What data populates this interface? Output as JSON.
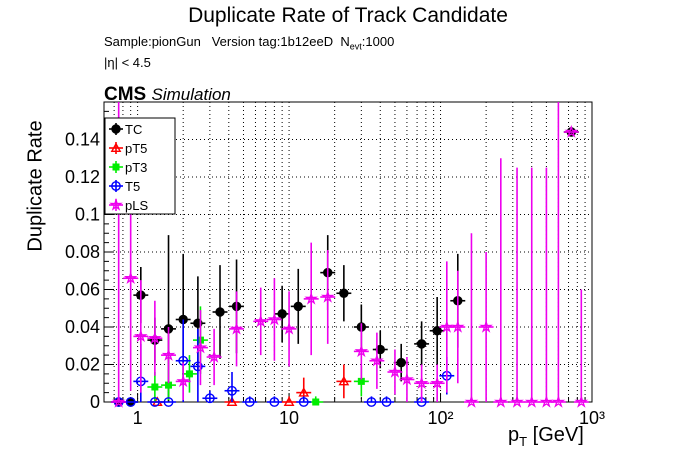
{
  "chart_data": {
    "type": "scatter",
    "title": "Duplicate Rate of Track Candidate",
    "subtitle_sample": "Sample:pionGun",
    "subtitle_version": "Version tag:1b12eeD",
    "subtitle_nevt_label": "N",
    "subtitle_nevt_sub": "evt",
    "subtitle_nevt_value": ":1000",
    "eta_cut": "|η| < 4.5",
    "cms_label": "CMS",
    "cms_sub": "Simulation",
    "ylabel": "Duplicate Rate",
    "xlabel_main": "p",
    "xlabel_sub": "T",
    "xlabel_unit": "[GeV]",
    "x_scale": "log",
    "xlim": [
      0.6,
      1000
    ],
    "ylim": [
      0,
      0.16
    ],
    "grid": true,
    "legend_position": "top-left",
    "x_tick_labels": [
      "1",
      "10",
      "10²",
      "10³"
    ],
    "y_tick_labels": [
      "0",
      "0.02",
      "0.04",
      "0.06",
      "0.08",
      "0.1",
      "0.12",
      "0.14"
    ],
    "series": [
      {
        "name": "TC",
        "color": "#000000",
        "marker": "filled-circle",
        "points": [
          {
            "x": 0.75,
            "y": 0.0,
            "err": 0.0
          },
          {
            "x": 0.9,
            "y": 0.0,
            "err": 0.0
          },
          {
            "x": 1.05,
            "y": 0.057,
            "err": 0.015
          },
          {
            "x": 1.3,
            "y": 0.033,
            "err": 0.012
          },
          {
            "x": 1.6,
            "y": 0.039,
            "err": 0.05
          },
          {
            "x": 2.0,
            "y": 0.044,
            "err": 0.035
          },
          {
            "x": 2.5,
            "y": 0.042,
            "err": 0.025
          },
          {
            "x": 3.5,
            "y": 0.048,
            "err": 0.025
          },
          {
            "x": 4.5,
            "y": 0.051,
            "err": 0.025
          },
          {
            "x": 9.0,
            "y": 0.047,
            "err": 0.015
          },
          {
            "x": 11.5,
            "y": 0.051,
            "err": 0.02
          },
          {
            "x": 18.0,
            "y": 0.069,
            "err": 0.02
          },
          {
            "x": 23.0,
            "y": 0.058,
            "err": 0.015
          },
          {
            "x": 30.0,
            "y": 0.04,
            "err": 0.012
          },
          {
            "x": 40.0,
            "y": 0.028,
            "err": 0.01
          },
          {
            "x": 55.0,
            "y": 0.021,
            "err": 0.01
          },
          {
            "x": 75.0,
            "y": 0.031,
            "err": 0.012
          },
          {
            "x": 95.0,
            "y": 0.038,
            "err": 0.018
          },
          {
            "x": 130.0,
            "y": 0.054,
            "err": 0.025
          },
          {
            "x": 730.0,
            "y": 0.144,
            "err": 0.0
          }
        ]
      },
      {
        "name": "pT5",
        "color": "#ff0000",
        "marker": "open-triangle",
        "points": [
          {
            "x": 1.35,
            "y": 0.0,
            "err": 0.0
          },
          {
            "x": 4.2,
            "y": 0.0,
            "err": 0.0
          },
          {
            "x": 10.0,
            "y": 0.0,
            "err": 0.003
          },
          {
            "x": 12.5,
            "y": 0.005,
            "err": 0.008
          },
          {
            "x": 23.0,
            "y": 0.011,
            "err": 0.009
          }
        ]
      },
      {
        "name": "pT3",
        "color": "#00ee00",
        "marker": "filled-square",
        "points": [
          {
            "x": 1.3,
            "y": 0.008,
            "err": 0.008
          },
          {
            "x": 1.6,
            "y": 0.009,
            "err": 0.008
          },
          {
            "x": 2.2,
            "y": 0.015,
            "err": 0.01
          },
          {
            "x": 2.6,
            "y": 0.033,
            "err": 0.018
          },
          {
            "x": 15.0,
            "y": 0.0,
            "err": 0.003
          },
          {
            "x": 30.0,
            "y": 0.011,
            "err": 0.008
          }
        ]
      },
      {
        "name": "T5",
        "color": "#0000ff",
        "marker": "open-circle",
        "points": [
          {
            "x": 0.75,
            "y": 0.0,
            "err": 0.0
          },
          {
            "x": 0.9,
            "y": 0.0,
            "err": 0.0
          },
          {
            "x": 1.05,
            "y": 0.011,
            "err": 0.02
          },
          {
            "x": 1.3,
            "y": 0.0,
            "err": 0.0
          },
          {
            "x": 1.6,
            "y": 0.0,
            "err": 0.0
          },
          {
            "x": 2.0,
            "y": 0.022,
            "err": 0.022
          },
          {
            "x": 2.5,
            "y": 0.019,
            "err": 0.02
          },
          {
            "x": 3.0,
            "y": 0.002,
            "err": 0.004
          },
          {
            "x": 4.2,
            "y": 0.006,
            "err": 0.01
          },
          {
            "x": 5.5,
            "y": 0.0,
            "err": 0.003
          },
          {
            "x": 8.0,
            "y": 0.0,
            "err": 0.003
          },
          {
            "x": 12.5,
            "y": 0.0,
            "err": 0.003
          },
          {
            "x": 35.0,
            "y": 0.0,
            "err": 0.003
          },
          {
            "x": 44.0,
            "y": 0.0,
            "err": 0.003
          },
          {
            "x": 75.0,
            "y": 0.0,
            "err": 0.003
          },
          {
            "x": 110.0,
            "y": 0.014,
            "err": 0.01
          }
        ]
      },
      {
        "name": "pLS",
        "color": "#ee00ee",
        "marker": "open-star",
        "points": [
          {
            "x": 0.75,
            "y": 0.0,
            "err": 0.16
          },
          {
            "x": 0.9,
            "y": 0.066,
            "err": 0.06
          },
          {
            "x": 1.05,
            "y": 0.035,
            "err": 0.03
          },
          {
            "x": 1.3,
            "y": 0.034,
            "err": 0.02
          },
          {
            "x": 1.6,
            "y": 0.025,
            "err": 0.015
          },
          {
            "x": 2.0,
            "y": 0.011,
            "err": 0.01
          },
          {
            "x": 2.6,
            "y": 0.029,
            "err": 0.02
          },
          {
            "x": 3.2,
            "y": 0.024,
            "err": 0.015
          },
          {
            "x": 4.5,
            "y": 0.039,
            "err": 0.02
          },
          {
            "x": 6.5,
            "y": 0.043,
            "err": 0.018
          },
          {
            "x": 8.0,
            "y": 0.044,
            "err": 0.022
          },
          {
            "x": 10.0,
            "y": 0.039,
            "err": 0.02
          },
          {
            "x": 14.0,
            "y": 0.055,
            "err": 0.03
          },
          {
            "x": 18.0,
            "y": 0.056,
            "err": 0.025
          },
          {
            "x": 30.0,
            "y": 0.027,
            "err": 0.015
          },
          {
            "x": 38.0,
            "y": 0.022,
            "err": 0.015
          },
          {
            "x": 50.0,
            "y": 0.016,
            "err": 0.012
          },
          {
            "x": 60.0,
            "y": 0.012,
            "err": 0.012
          },
          {
            "x": 75.0,
            "y": 0.01,
            "err": 0.01
          },
          {
            "x": 95.0,
            "y": 0.01,
            "err": 0.01
          },
          {
            "x": 110.0,
            "y": 0.04,
            "err": 0.035
          },
          {
            "x": 130.0,
            "y": 0.04,
            "err": 0.03
          },
          {
            "x": 160.0,
            "y": 0.0,
            "err": 0.09
          },
          {
            "x": 200.0,
            "y": 0.04,
            "err": 0.04
          },
          {
            "x": 250.0,
            "y": 0.0,
            "err": 0.13
          },
          {
            "x": 320.0,
            "y": 0.0,
            "err": 0.125
          },
          {
            "x": 400.0,
            "y": 0.0,
            "err": 0.125
          },
          {
            "x": 500.0,
            "y": 0.0,
            "err": 0.125
          },
          {
            "x": 600.0,
            "y": 0.0,
            "err": 0.16
          },
          {
            "x": 730.0,
            "y": 0.144,
            "err": 0.0
          },
          {
            "x": 850.0,
            "y": 0.0,
            "err": 0.06
          }
        ]
      }
    ]
  }
}
